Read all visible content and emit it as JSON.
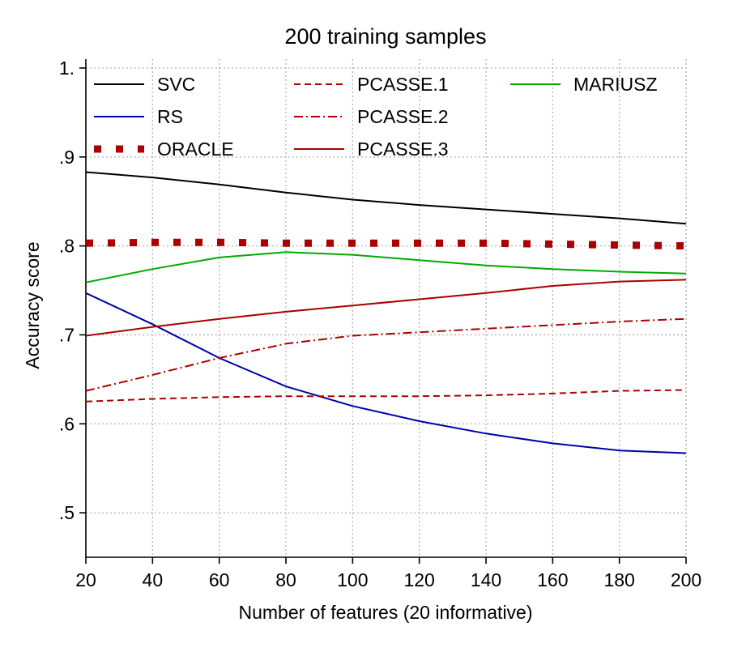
{
  "chart_data": {
    "type": "line",
    "title": "200 training samples",
    "xlabel": "Number of features (20 informative)",
    "ylabel": "Accuracy score",
    "xlim": [
      20,
      200
    ],
    "ylim": [
      0.45,
      1.01
    ],
    "x_ticks": [
      20,
      40,
      60,
      80,
      100,
      120,
      140,
      160,
      180,
      200
    ],
    "x_tick_labels": [
      "20",
      "40",
      "60",
      "80",
      "100",
      "120",
      "140",
      "160",
      "180",
      "200"
    ],
    "y_ticks": [
      0.5,
      0.6,
      0.7,
      0.8,
      0.9,
      1.0
    ],
    "y_tick_labels": [
      ".5",
      ".6",
      ".7",
      ".8",
      ".9",
      "1."
    ],
    "grid": true,
    "legend_position": "top",
    "x": [
      20,
      40,
      60,
      80,
      100,
      120,
      140,
      160,
      180,
      200
    ],
    "series": [
      {
        "name": "SVC",
        "color": "#000000",
        "style": "solid",
        "values": [
          0.883,
          0.877,
          0.869,
          0.86,
          0.852,
          0.846,
          0.841,
          0.836,
          0.831,
          0.825
        ]
      },
      {
        "name": "RS",
        "color": "#0000aa",
        "style": "solid",
        "values": [
          0.747,
          0.712,
          0.674,
          0.642,
          0.62,
          0.603,
          0.589,
          0.578,
          0.57,
          0.567
        ]
      },
      {
        "name": "ORACLE",
        "color": "#aa0000",
        "style": "dotted",
        "values": [
          0.803,
          0.804,
          0.804,
          0.803,
          0.803,
          0.803,
          0.803,
          0.802,
          0.801,
          0.8
        ]
      },
      {
        "name": "PCASSE.1",
        "color": "#aa0000",
        "style": "dashed",
        "values": [
          0.625,
          0.628,
          0.63,
          0.631,
          0.631,
          0.631,
          0.632,
          0.634,
          0.637,
          0.638
        ]
      },
      {
        "name": "PCASSE.2",
        "color": "#aa0000",
        "style": "dashdot",
        "values": [
          0.637,
          0.655,
          0.674,
          0.69,
          0.699,
          0.703,
          0.707,
          0.711,
          0.715,
          0.718
        ]
      },
      {
        "name": "PCASSE.3",
        "color": "#aa0000",
        "style": "solid",
        "values": [
          0.699,
          0.709,
          0.718,
          0.726,
          0.733,
          0.74,
          0.747,
          0.755,
          0.76,
          0.762
        ]
      },
      {
        "name": "MARIUSZ",
        "color": "#00aa00",
        "style": "solid",
        "values": [
          0.759,
          0.774,
          0.787,
          0.793,
          0.79,
          0.784,
          0.778,
          0.774,
          0.771,
          0.769
        ]
      }
    ]
  }
}
